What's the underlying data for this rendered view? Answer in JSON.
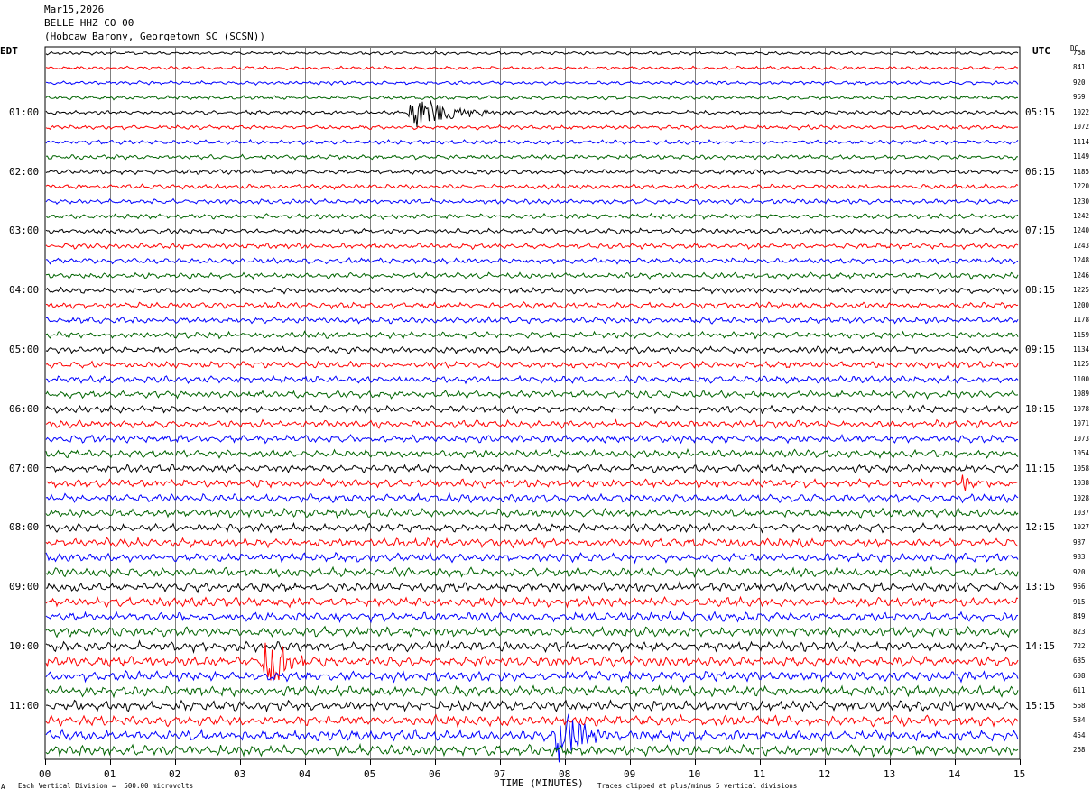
{
  "header": {
    "date": "Mar15,2026",
    "station": "BELLE HHZ CO 00",
    "location": "(Hobcaw Barony, Georgetown SC (SCSN))"
  },
  "left_zone": "EDT",
  "right_zone": "UTC",
  "dc_label": "DC",
  "footer": {
    "scale_note": "Each Vertical Division =  500.00 microvolts",
    "xlabel": "TIME (MINUTES)",
    "clip_note": "Traces clipped at plus/minus 5 vertical divisions",
    "corner_mark": "A"
  },
  "colors": {
    "cycle": [
      "#000000",
      "#ff0000",
      "#0000ff",
      "#006400"
    ],
    "grid": "#808080"
  },
  "chart_data": {
    "type": "line",
    "title": "",
    "xlabel": "TIME (MINUTES)",
    "ylabel": "",
    "xlim": [
      0,
      15
    ],
    "x_ticks": [
      "00",
      "01",
      "02",
      "03",
      "04",
      "05",
      "06",
      "07",
      "08",
      "09",
      "10",
      "11",
      "12",
      "13",
      "14",
      "15"
    ],
    "left_time_labels": [
      "01:00",
      "02:00",
      "03:00",
      "04:00",
      "05:00",
      "06:00",
      "07:00",
      "08:00",
      "09:00",
      "10:00",
      "11:00"
    ],
    "right_time_labels": [
      "05:15",
      "06:15",
      "07:15",
      "08:15",
      "09:15",
      "10:15",
      "11:15",
      "12:15",
      "13:15",
      "14:15",
      "15:15"
    ],
    "traces_count": 48,
    "dc_offsets": [
      768,
      841,
      920,
      969,
      1022,
      1072,
      1114,
      1149,
      1185,
      1220,
      1230,
      1242,
      1240,
      1243,
      1248,
      1246,
      1225,
      1200,
      1178,
      1159,
      1134,
      1125,
      1100,
      1089,
      1078,
      1071,
      1073,
      1054,
      1058,
      1038,
      1028,
      1037,
      1027,
      987,
      983,
      920,
      966,
      915,
      849,
      823,
      722,
      685,
      608,
      611,
      568,
      584,
      454,
      268
    ],
    "events": [
      {
        "trace": 4,
        "start_minute": 5.58,
        "duration_minutes": 1.6,
        "amplitude": 1.6
      },
      {
        "trace": 41,
        "start_minute": 3.35,
        "duration_minutes": 1.1,
        "amplitude": 2.2
      },
      {
        "trace": 46,
        "start_minute": 7.85,
        "duration_minutes": 0.9,
        "amplitude": 3.0
      },
      {
        "trace": 29,
        "start_minute": 14.1,
        "duration_minutes": 0.45,
        "amplitude": 0.8
      }
    ]
  }
}
